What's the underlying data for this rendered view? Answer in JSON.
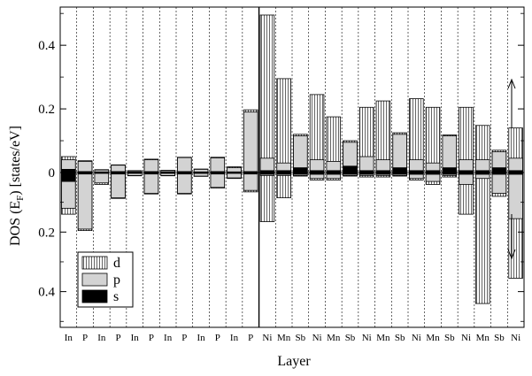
{
  "chart_data": {
    "type": "bar",
    "xlabel": "Layer",
    "ylabel_main": "DOS (E",
    "ylabel_sub": "F",
    "ylabel_tail": ") [states/eV]",
    "y_ticks_up": [
      0,
      0.2,
      0.4
    ],
    "y_ticks_up_labels": [
      "0",
      "0.2",
      "0.4"
    ],
    "y_ticks_down": [
      0.2,
      0.4
    ],
    "y_ticks_down_labels": [
      "0.2",
      "0.4"
    ],
    "ylim_up": 0.52,
    "ylim_down": 0.52,
    "interface_after_index": 11,
    "categories": [
      "In",
      "P",
      "In",
      "P",
      "In",
      "P",
      "In",
      "P",
      "In",
      "P",
      "In",
      "P",
      "Ni",
      "Mn",
      "Sb",
      "Ni",
      "Mn",
      "Sb",
      "Ni",
      "Mn",
      "Sb",
      "Ni",
      "Mn",
      "Sb",
      "Ni",
      "Mn",
      "Sb",
      "Ni"
    ],
    "spin_up": [
      {
        "s": 0.01,
        "p": 0.04,
        "d": 0.05
      },
      {
        "s": 0.003,
        "p": 0.035,
        "d": 0.037
      },
      {
        "s": 0.002,
        "p": 0.008,
        "d": 0.009
      },
      {
        "s": 0.003,
        "p": 0.023,
        "d": 0.024
      },
      {
        "s": 0.002,
        "p": 0.005,
        "d": 0.006
      },
      {
        "s": 0.003,
        "p": 0.04,
        "d": 0.042
      },
      {
        "s": 0.002,
        "p": 0.006,
        "d": 0.007
      },
      {
        "s": 0.003,
        "p": 0.047,
        "d": 0.048
      },
      {
        "s": 0.002,
        "p": 0.01,
        "d": 0.011
      },
      {
        "s": 0.003,
        "p": 0.046,
        "d": 0.048
      },
      {
        "s": 0.002,
        "p": 0.015,
        "d": 0.018
      },
      {
        "s": 0.003,
        "p": 0.19,
        "d": 0.197
      },
      {
        "s": 0.006,
        "p": 0.045,
        "d": 0.495
      },
      {
        "s": 0.006,
        "p": 0.03,
        "d": 0.295
      },
      {
        "s": 0.015,
        "p": 0.115,
        "d": 0.12
      },
      {
        "s": 0.006,
        "p": 0.04,
        "d": 0.245
      },
      {
        "s": 0.006,
        "p": 0.035,
        "d": 0.175
      },
      {
        "s": 0.02,
        "p": 0.095,
        "d": 0.1
      },
      {
        "s": 0.006,
        "p": 0.05,
        "d": 0.205
      },
      {
        "s": 0.006,
        "p": 0.04,
        "d": 0.225
      },
      {
        "s": 0.015,
        "p": 0.12,
        "d": 0.125
      },
      {
        "s": 0.006,
        "p": 0.04,
        "d": 0.232
      },
      {
        "s": 0.006,
        "p": 0.03,
        "d": 0.205
      },
      {
        "s": 0.015,
        "p": 0.115,
        "d": 0.118
      },
      {
        "s": 0.006,
        "p": 0.04,
        "d": 0.205
      },
      {
        "s": 0.006,
        "p": 0.04,
        "d": 0.148
      },
      {
        "s": 0.015,
        "p": 0.065,
        "d": 0.07
      },
      {
        "s": 0.006,
        "p": 0.045,
        "d": 0.14
      }
    ],
    "spin_down": [
      {
        "s": 0.03,
        "p": 0.12,
        "d": 0.14
      },
      {
        "s": 0.005,
        "p": 0.19,
        "d": 0.195
      },
      {
        "s": 0.003,
        "p": 0.035,
        "d": 0.04
      },
      {
        "s": 0.005,
        "p": 0.085,
        "d": 0.087
      },
      {
        "s": 0.003,
        "p": 0.01,
        "d": 0.011
      },
      {
        "s": 0.005,
        "p": 0.07,
        "d": 0.072
      },
      {
        "s": 0.003,
        "p": 0.01,
        "d": 0.011
      },
      {
        "s": 0.005,
        "p": 0.07,
        "d": 0.072
      },
      {
        "s": 0.003,
        "p": 0.012,
        "d": 0.013
      },
      {
        "s": 0.005,
        "p": 0.05,
        "d": 0.052
      },
      {
        "s": 0.003,
        "p": 0.018,
        "d": 0.02
      },
      {
        "s": 0.005,
        "p": 0.06,
        "d": 0.065
      },
      {
        "s": 0.006,
        "p": 0.01,
        "d": 0.165
      },
      {
        "s": 0.006,
        "p": 0.01,
        "d": 0.085
      },
      {
        "s": 0.006,
        "p": 0.01,
        "d": 0.012
      },
      {
        "s": 0.006,
        "p": 0.02,
        "d": 0.025
      },
      {
        "s": 0.006,
        "p": 0.02,
        "d": 0.025
      },
      {
        "s": 0.006,
        "p": 0.01,
        "d": 0.012
      },
      {
        "s": 0.006,
        "p": 0.01,
        "d": 0.015
      },
      {
        "s": 0.006,
        "p": 0.01,
        "d": 0.015
      },
      {
        "s": 0.006,
        "p": 0.01,
        "d": 0.012
      },
      {
        "s": 0.006,
        "p": 0.02,
        "d": 0.025
      },
      {
        "s": 0.006,
        "p": 0.03,
        "d": 0.04
      },
      {
        "s": 0.006,
        "p": 0.01,
        "d": 0.015
      },
      {
        "s": 0.006,
        "p": 0.04,
        "d": 0.14
      },
      {
        "s": 0.006,
        "p": 0.02,
        "d": 0.44
      },
      {
        "s": 0.006,
        "p": 0.07,
        "d": 0.08
      },
      {
        "s": 0.006,
        "p": 0.155,
        "d": 0.355
      }
    ],
    "legend": [
      {
        "key": "d",
        "label": "d"
      },
      {
        "key": "p",
        "label": "p"
      },
      {
        "key": "s",
        "label": "s"
      }
    ],
    "legend_position": "bottom-left",
    "grid": "vertical-dashed",
    "annotations": [
      "up-arrow",
      "down-arrow"
    ],
    "colors": {
      "s": "#000000",
      "p": "#d3d3d3",
      "d": "#ffffff",
      "frame": "#000000"
    }
  }
}
